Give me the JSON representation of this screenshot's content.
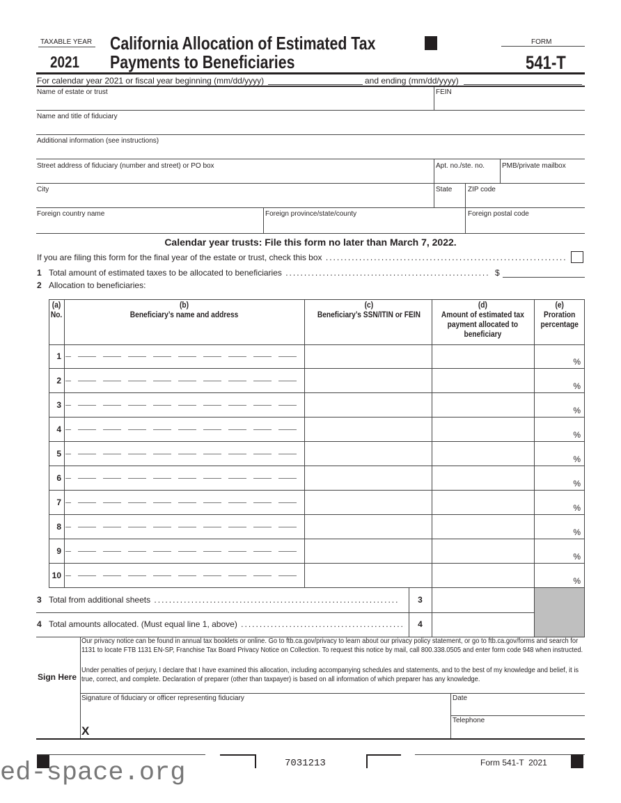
{
  "header": {
    "taxable_year_label": "TAXABLE YEAR",
    "year": "2021",
    "title_line1": "California Allocation of Estimated Tax",
    "title_line2": "Payments to Beneficiaries",
    "form_label": "FORM",
    "form_number": "541-T"
  },
  "period": {
    "text": "For calendar year 2021 or fiscal year beginning (mm/dd/yyyy)",
    "ending": "and ending (mm/dd/yyyy)"
  },
  "fields": {
    "estate_name": "Name of estate or trust",
    "fein": "FEIN",
    "fiduciary_name": "Name and title of fiduciary",
    "additional_info": "Additional information (see instructions)",
    "street": "Street address of fiduciary (number and street) or PO box",
    "apt": "Apt. no./ste. no.",
    "pmb": "PMB/private mailbox",
    "city": "City",
    "state": "State",
    "zip": "ZIP code",
    "country": "Foreign country name",
    "province": "Foreign province/state/county",
    "postal": "Foreign postal code"
  },
  "deadline": "Calendar year trusts: File this form no later than March 7, 2022.",
  "final_year": "If you are filing this form for the final year of the estate or trust, check this box",
  "line1": {
    "num": "1",
    "text": "Total amount of estimated taxes to be allocated to beneficiaries",
    "dollar": "$"
  },
  "line2": {
    "num": "2",
    "text": "Allocation to beneficiaries:"
  },
  "table": {
    "headers": [
      {
        "id": "(a)",
        "label": "No."
      },
      {
        "id": "(b)",
        "label": "Beneficiary’s name and address"
      },
      {
        "id": "(c)",
        "label": "Beneficiary’s SSN/ITIN or FEIN"
      },
      {
        "id": "(d)",
        "label": "Amount of estimated tax payment allocated to beneficiary"
      },
      {
        "id": "(e)",
        "label": "Proration percentage"
      }
    ],
    "rows": [
      "1",
      "2",
      "3",
      "4",
      "5",
      "6",
      "7",
      "8",
      "9",
      "10"
    ],
    "percent": "%"
  },
  "line3": {
    "num": "3",
    "text": "Total from additional sheets",
    "box": "3"
  },
  "line4": {
    "num": "4",
    "text": "Total amounts allocated. (Must equal line 1, above)",
    "box": "4"
  },
  "sign": {
    "label": "Sign Here",
    "privacy": "Our privacy notice can be found in annual tax booklets or online. Go to ftb.ca.gov/privacy to learn about our privacy policy statement, or go to ftb.ca.gov/forms and search for 1131 to locate FTB 1131 EN-SP, Franchise Tax Board Privacy Notice on Collection. To request this notice by mail, call 800.338.0505 and enter form code 948 when instructed.",
    "perjury": "Under penalties of perjury, I declare that I have examined this allocation, including accompanying schedules and statements, and to the best of my knowledge and belief, it is true, correct, and complete. Declaration of preparer (other than taxpayer) is based on all information of which preparer has any knowledge.",
    "signature": "Signature of fiduciary or officer representing fiduciary",
    "x": "X",
    "date": "Date",
    "telephone": "Telephone"
  },
  "footer": {
    "code": "7031213",
    "form": "Form 541-T  2021",
    "watermark": "ed-space.org"
  }
}
